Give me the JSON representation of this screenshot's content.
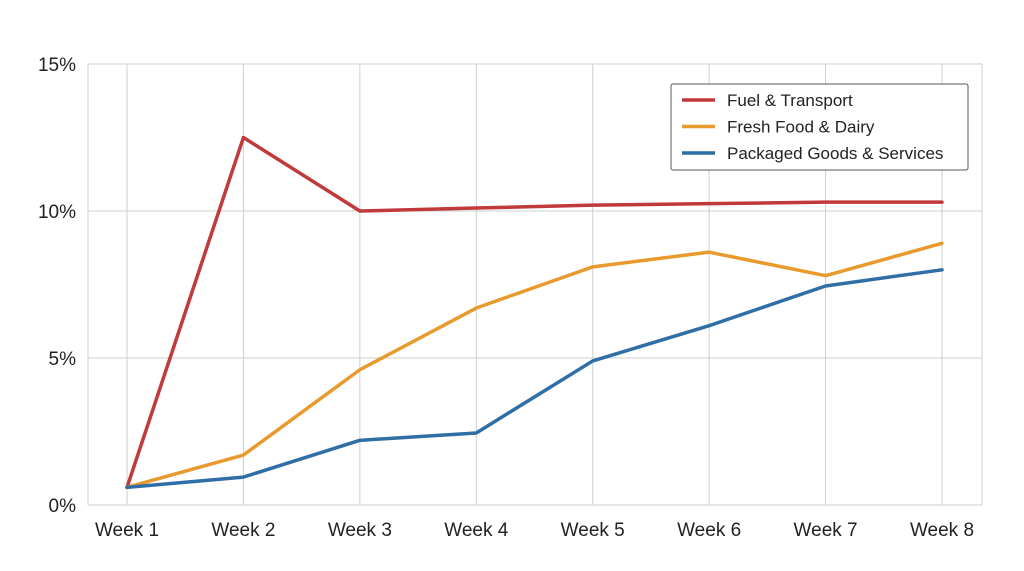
{
  "chart_data": {
    "type": "line",
    "categories": [
      "Week 1",
      "Week 2",
      "Week 3",
      "Week 4",
      "Week 5",
      "Week 6",
      "Week 7",
      "Week 8"
    ],
    "ylim": [
      0,
      15
    ],
    "yticks": [
      0,
      5,
      10,
      15
    ],
    "ytick_labels": [
      "0%",
      "5%",
      "10%",
      "15%"
    ],
    "grid": true,
    "legend_position": "top-right",
    "series": [
      {
        "name": "Fuel & Transport",
        "color": "#c0393b",
        "values": [
          0.6,
          12.5,
          10.0,
          10.1,
          10.2,
          10.25,
          10.3,
          10.3
        ]
      },
      {
        "name": "Fresh Food & Dairy",
        "color": "#e89a2c",
        "values": [
          0.6,
          1.7,
          4.6,
          6.7,
          8.1,
          8.6,
          7.8,
          8.9
        ]
      },
      {
        "name": "Packaged Goods & Services",
        "color": "#2f6fa6",
        "values": [
          0.6,
          0.95,
          2.2,
          2.45,
          4.9,
          6.1,
          7.45,
          8.0
        ]
      }
    ]
  }
}
